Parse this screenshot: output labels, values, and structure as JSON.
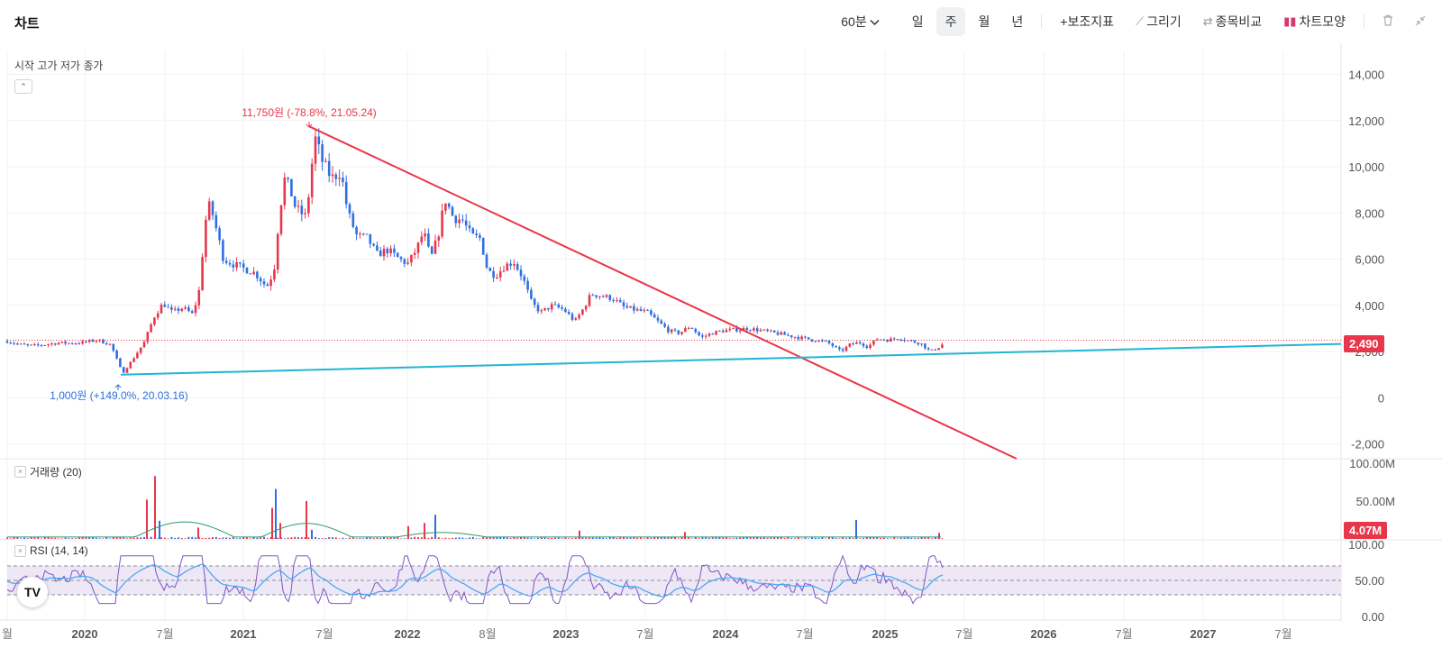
{
  "header": {
    "title": "차트",
    "interval": "60분",
    "periods": [
      "일",
      "주",
      "월",
      "년"
    ],
    "active_period": "주",
    "tools": [
      "+보조지표",
      "그리기",
      "종목비교",
      "차트모양"
    ]
  },
  "legend": {
    "ohlc_label": "시작 고가 저가 종가",
    "volume_label": "거래량 (20)",
    "rsi_label": "RSI (14, 14)"
  },
  "logo_text": "TV",
  "colors": {
    "up": "#e8374b",
    "down": "#2f6fe0",
    "trend_down": "#e8374b",
    "trend_up": "#1fb6d3",
    "volume_ma": "#2e9a6a",
    "rsi_line": "#7e57c2",
    "rsi_signal": "#42a5f5",
    "rsi_band": "#ede7f6"
  },
  "chart_data": {
    "type": "candlestick",
    "y_ticks": [
      "14,000",
      "12,000",
      "10,000",
      "8,000",
      "6,000",
      "4,000",
      "2,000",
      "0",
      "-2,000"
    ],
    "ylim": [
      -2600,
      14800
    ],
    "x_ticks": [
      "월",
      "2020",
      "7월",
      "2021",
      "7월",
      "2022",
      "8월",
      "2023",
      "7월",
      "2024",
      "7월",
      "2025",
      "7월",
      "2026",
      "7월",
      "2027",
      "7월"
    ],
    "last_price": 2490,
    "last_price_label": "2,490",
    "high_annotation": {
      "value": 11750,
      "text": "11,750원 (-78.8%, 21.05.24)"
    },
    "low_annotation": {
      "value": 1000,
      "text": "1,000원 (+149.0%, 20.03.16)"
    },
    "price_path": [
      [
        0,
        2450
      ],
      [
        14,
        2300
      ],
      [
        28,
        2250
      ],
      [
        42,
        2300
      ],
      [
        56,
        2380
      ],
      [
        70,
        2360
      ],
      [
        85,
        2400
      ],
      [
        100,
        2500
      ],
      [
        115,
        2300
      ],
      [
        128,
        1050
      ],
      [
        140,
        1700
      ],
      [
        152,
        2400
      ],
      [
        163,
        3500
      ],
      [
        173,
        4100
      ],
      [
        183,
        3700
      ],
      [
        195,
        3900
      ],
      [
        206,
        3600
      ],
      [
        214,
        4800
      ],
      [
        219,
        7500
      ],
      [
        225,
        8400
      ],
      [
        232,
        7300
      ],
      [
        240,
        6000
      ],
      [
        250,
        5800
      ],
      [
        262,
        5600
      ],
      [
        275,
        5400
      ],
      [
        288,
        4800
      ],
      [
        296,
        5500
      ],
      [
        302,
        8000
      ],
      [
        308,
        9500
      ],
      [
        314,
        9000
      ],
      [
        320,
        8200
      ],
      [
        326,
        8000
      ],
      [
        332,
        7800
      ],
      [
        337,
        9800
      ],
      [
        342,
        11200
      ],
      [
        350,
        10200
      ],
      [
        360,
        9500
      ],
      [
        370,
        9800
      ],
      [
        378,
        8000
      ],
      [
        388,
        7000
      ],
      [
        400,
        6900
      ],
      [
        410,
        6200
      ],
      [
        422,
        6400
      ],
      [
        435,
        6000
      ],
      [
        445,
        5800
      ],
      [
        455,
        6500
      ],
      [
        462,
        7200
      ],
      [
        470,
        6000
      ],
      [
        478,
        7000
      ],
      [
        486,
        8600
      ],
      [
        495,
        7800
      ],
      [
        505,
        7700
      ],
      [
        515,
        7000
      ],
      [
        525,
        6900
      ],
      [
        533,
        5500
      ],
      [
        542,
        5300
      ],
      [
        552,
        5700
      ],
      [
        562,
        5900
      ],
      [
        572,
        5200
      ],
      [
        582,
        4100
      ],
      [
        592,
        3700
      ],
      [
        605,
        4000
      ],
      [
        618,
        3800
      ],
      [
        630,
        3300
      ],
      [
        640,
        3900
      ],
      [
        648,
        4500
      ],
      [
        660,
        4400
      ],
      [
        672,
        4300
      ],
      [
        685,
        3900
      ],
      [
        698,
        3800
      ],
      [
        710,
        3700
      ],
      [
        722,
        3300
      ],
      [
        734,
        2900
      ],
      [
        746,
        2800
      ],
      [
        758,
        3100
      ],
      [
        770,
        2600
      ],
      [
        782,
        2800
      ],
      [
        794,
        2900
      ],
      [
        808,
        2950
      ],
      [
        822,
        3000
      ],
      [
        838,
        2900
      ],
      [
        852,
        2800
      ],
      [
        866,
        2700
      ],
      [
        880,
        2600
      ],
      [
        895,
        2500
      ],
      [
        910,
        2400
      ],
      [
        925,
        2000
      ],
      [
        935,
        2300
      ],
      [
        945,
        2400
      ],
      [
        955,
        2200
      ],
      [
        965,
        2550
      ],
      [
        978,
        2500
      ],
      [
        990,
        2600
      ],
      [
        1002,
        2450
      ],
      [
        1014,
        2350
      ],
      [
        1024,
        2000
      ],
      [
        1034,
        2200
      ],
      [
        1044,
        2490
      ]
    ],
    "volume_axis": [
      "100.00M",
      "50.00M"
    ],
    "volume_last_label": "4.07M",
    "volume_spikes": [
      {
        "x": 163,
        "value": 52
      },
      {
        "x": 172,
        "value": 83
      },
      {
        "x": 177,
        "value": 24
      },
      {
        "x": 220,
        "value": 15
      },
      {
        "x": 302,
        "value": 41
      },
      {
        "x": 306,
        "value": 66
      },
      {
        "x": 311,
        "value": 21
      },
      {
        "x": 340,
        "value": 50
      },
      {
        "x": 346,
        "value": 12
      },
      {
        "x": 453,
        "value": 17
      },
      {
        "x": 471,
        "value": 21
      },
      {
        "x": 483,
        "value": 32
      },
      {
        "x": 643,
        "value": 11
      },
      {
        "x": 760,
        "value": 9
      },
      {
        "x": 950,
        "value": 25
      },
      {
        "x": 1042,
        "value": 8
      }
    ],
    "rsi_axis": [
      "100.00",
      "50.00",
      "0.00"
    ],
    "rsi_band": [
      30,
      70
    ]
  }
}
